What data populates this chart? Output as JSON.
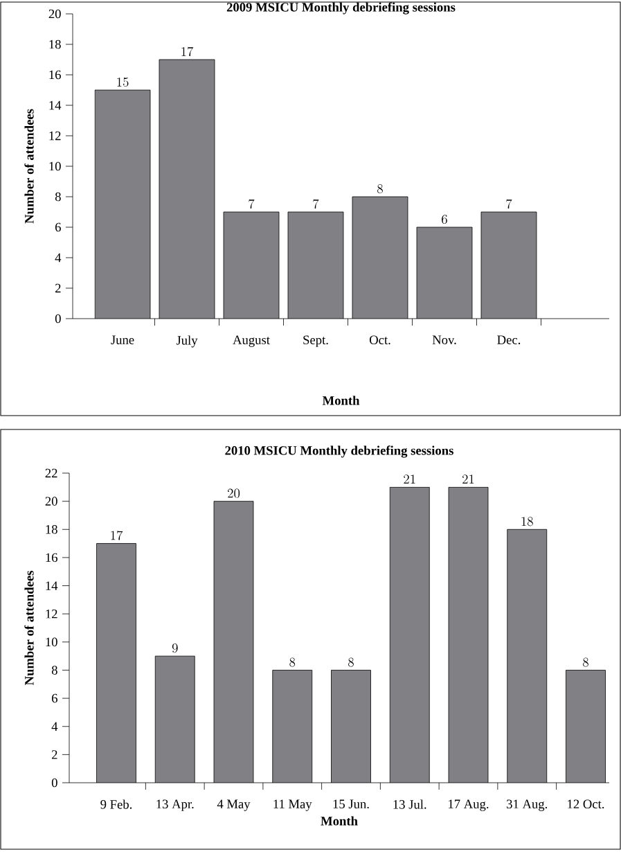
{
  "chart_data": [
    {
      "type": "bar",
      "title": "2009 MSICU Monthly debriefing sessions",
      "xlabel": "Month",
      "ylabel": "Number of attendees",
      "categories": [
        "June",
        "July",
        "August",
        "Sept.",
        "Oct.",
        "Nov.",
        "Dec."
      ],
      "values": [
        15,
        17,
        7,
        7,
        8,
        6,
        7
      ],
      "color": "#808085",
      "ylim": [
        0,
        20
      ],
      "yticks": [
        0,
        2,
        4,
        6,
        8,
        10,
        12,
        14,
        16,
        18,
        20
      ],
      "data_labels": true
    },
    {
      "type": "bar",
      "title": "2010 MSICU Monthly debriefing sessions",
      "xlabel": "Month",
      "ylabel": "Number of attendees",
      "categories": [
        "9 Feb.",
        "13 Apr.",
        "4 May",
        "11 May",
        "15 Jun.",
        "13 Jul.",
        "17 Aug.",
        "31 Aug.",
        "12 Oct."
      ],
      "values": [
        17,
        9,
        20,
        8,
        8,
        21,
        21,
        18,
        8
      ],
      "color": "#808085",
      "ylim": [
        0,
        22
      ],
      "yticks": [
        0,
        2,
        4,
        6,
        8,
        10,
        12,
        14,
        16,
        18,
        20,
        22
      ],
      "data_labels": true
    }
  ]
}
